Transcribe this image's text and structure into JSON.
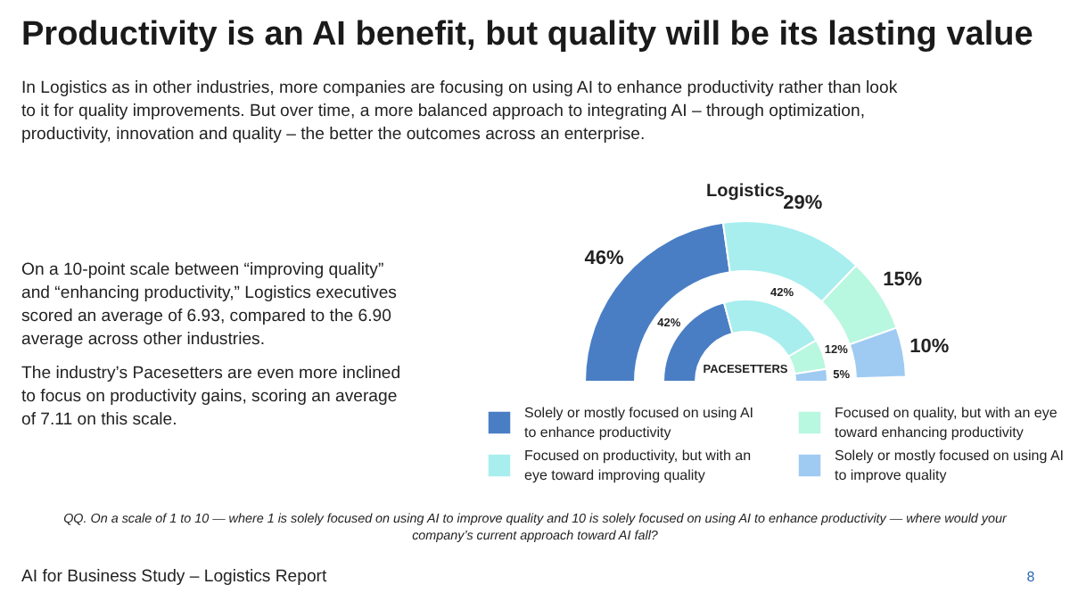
{
  "chart_data": {
    "type": "donut",
    "title": "Productivity is an AI benefit, but quality will be its lasting value",
    "subtitle": "In Logistics as in other industries, more companies are focusing on using AI to enhance productivity rather than look to it for quality improvements. But over time, a more balanced approach to integrating AI – through optimization, productivity, innovation and quality – the better the outcomes across an enterprise.",
    "categories": [
      "Solely or mostly focused on using AI to enhance productivity",
      "Focused on productivity, but with an eye toward improving quality",
      "Focused on quality, but with an eye toward enhancing productivity",
      "Solely or mostly focused on using AI to improve quality"
    ],
    "colors": [
      "#4a7ec4",
      "#a8eeee",
      "#b8f7e0",
      "#9fcbf2"
    ],
    "series": [
      {
        "name": "Logistics",
        "values": [
          46,
          29,
          15,
          10
        ],
        "value_labels": [
          "46%",
          "29%",
          "15%",
          "10%"
        ]
      },
      {
        "name": "PACESETTERS",
        "values": [
          42,
          42,
          12,
          5
        ],
        "value_labels": [
          "42%",
          "42%",
          "12%",
          "5%"
        ]
      }
    ],
    "legend": "bottom",
    "annotations": [
      "On a 10-point scale between “improving quality” and “enhancing productivity,” Logistics executives scored an average of 6.93, compared to the 6.90 average across other industries.",
      "The industry’s Pacesetters are even more inclined to focus on productivity gains, scoring an average of 7.11 on this scale.",
      "QQ. On a scale of 1 to 10 — where 1 is solely focused on using AI to improve quality and 10 is solely focused on using AI to enhance productivity — where would your company’s current approach toward AI fall?",
      "AI for Business Study – Logistics Report",
      "8"
    ]
  }
}
